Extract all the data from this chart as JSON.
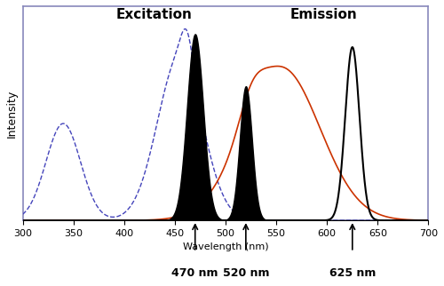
{
  "title": "",
  "xlabel": "Wavelength (nm)",
  "ylabel": "Intensity",
  "xlim": [
    300,
    700
  ],
  "ylim": [
    0,
    1.15
  ],
  "background_color": "#ffffff",
  "excitation_label": "Excitation",
  "emission_label": "Emission",
  "annotations": [
    {
      "x": 470,
      "label": "470 nm"
    },
    {
      "x": 520,
      "label": "520 nm"
    },
    {
      "x": 625,
      "label": "625 nm"
    }
  ],
  "spine_color": "#8888bb",
  "xticks": [
    300,
    350,
    400,
    450,
    500,
    550,
    600,
    650,
    700
  ]
}
